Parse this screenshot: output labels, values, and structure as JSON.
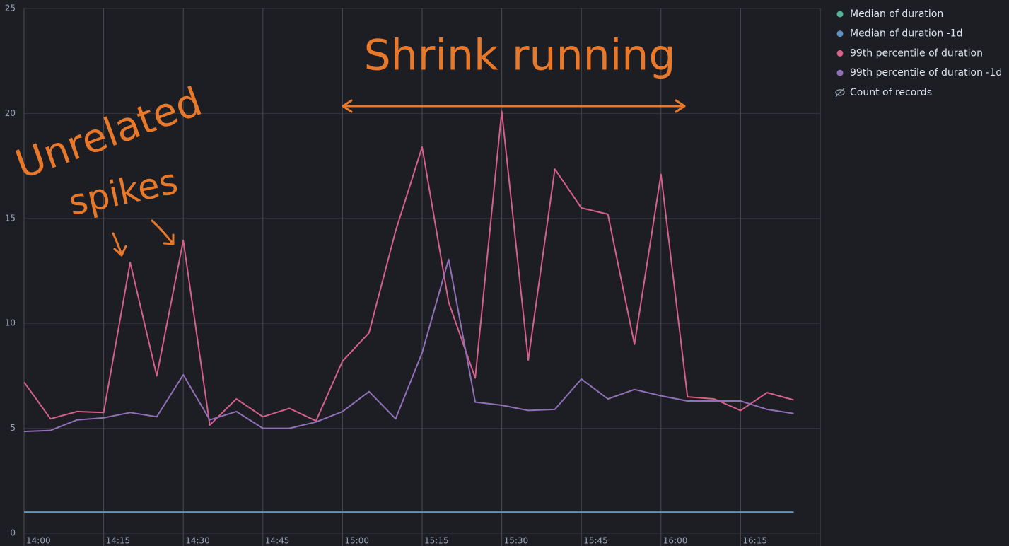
{
  "chart_data": {
    "type": "line",
    "categories": [
      "14:00",
      null,
      null,
      "14:15",
      null,
      null,
      "14:30",
      null,
      null,
      "14:45",
      null,
      null,
      "15:00",
      null,
      null,
      "15:15",
      null,
      null,
      "15:30",
      null,
      null,
      "15:45",
      null,
      null,
      "16:00",
      null,
      null,
      "16:15",
      null,
      null
    ],
    "series": [
      {
        "name": "Median of duration",
        "color": "#54b399",
        "values": [
          1,
          1,
          1,
          1,
          1,
          1,
          1,
          1,
          1,
          1,
          1,
          1,
          1,
          1,
          1,
          1,
          1,
          1,
          1,
          1,
          1,
          1,
          1,
          1,
          1,
          1,
          1,
          1,
          1,
          1
        ]
      },
      {
        "name": "Median of duration -1d",
        "color": "#6092c0",
        "values": [
          1,
          1,
          1,
          1,
          1,
          1,
          1,
          1,
          1,
          1,
          1,
          1,
          1,
          1,
          1,
          1,
          1,
          1,
          1,
          1,
          1,
          1,
          1,
          1,
          1,
          1,
          1,
          1,
          1,
          1
        ]
      },
      {
        "name": "99th percentile of duration",
        "color": "#d6608a",
        "values": [
          7.2,
          5.45,
          5.8,
          5.75,
          12.9,
          7.5,
          13.95,
          5.15,
          6.4,
          5.55,
          5.95,
          5.35,
          8.2,
          9.55,
          14.4,
          18.4,
          11.0,
          7.4,
          20.1,
          8.25,
          17.35,
          15.5,
          15.2,
          9.0,
          17.1,
          6.5,
          6.4,
          5.85,
          6.7,
          6.35
        ]
      },
      {
        "name": "99th percentile of duration -1d",
        "color": "#9170b8",
        "values": [
          4.85,
          4.9,
          5.4,
          5.5,
          5.75,
          5.55,
          7.55,
          5.4,
          5.8,
          5.0,
          5.0,
          5.3,
          5.8,
          6.75,
          5.45,
          8.6,
          13.05,
          6.25,
          6.1,
          5.85,
          5.9,
          7.35,
          6.4,
          6.85,
          6.55,
          6.3,
          6.3,
          6.3,
          5.9,
          5.7
        ]
      },
      {
        "name": "Count of records",
        "color": "#98a2b3",
        "visible": false
      }
    ],
    "ylim": [
      0,
      25
    ],
    "yticks": [
      0,
      5,
      10,
      15,
      20,
      25
    ],
    "grid": true,
    "legend": "right",
    "annotations": [
      {
        "text": "Shrink running"
      },
      {
        "text": "Unrelated"
      },
      {
        "text": "spikes"
      }
    ]
  }
}
